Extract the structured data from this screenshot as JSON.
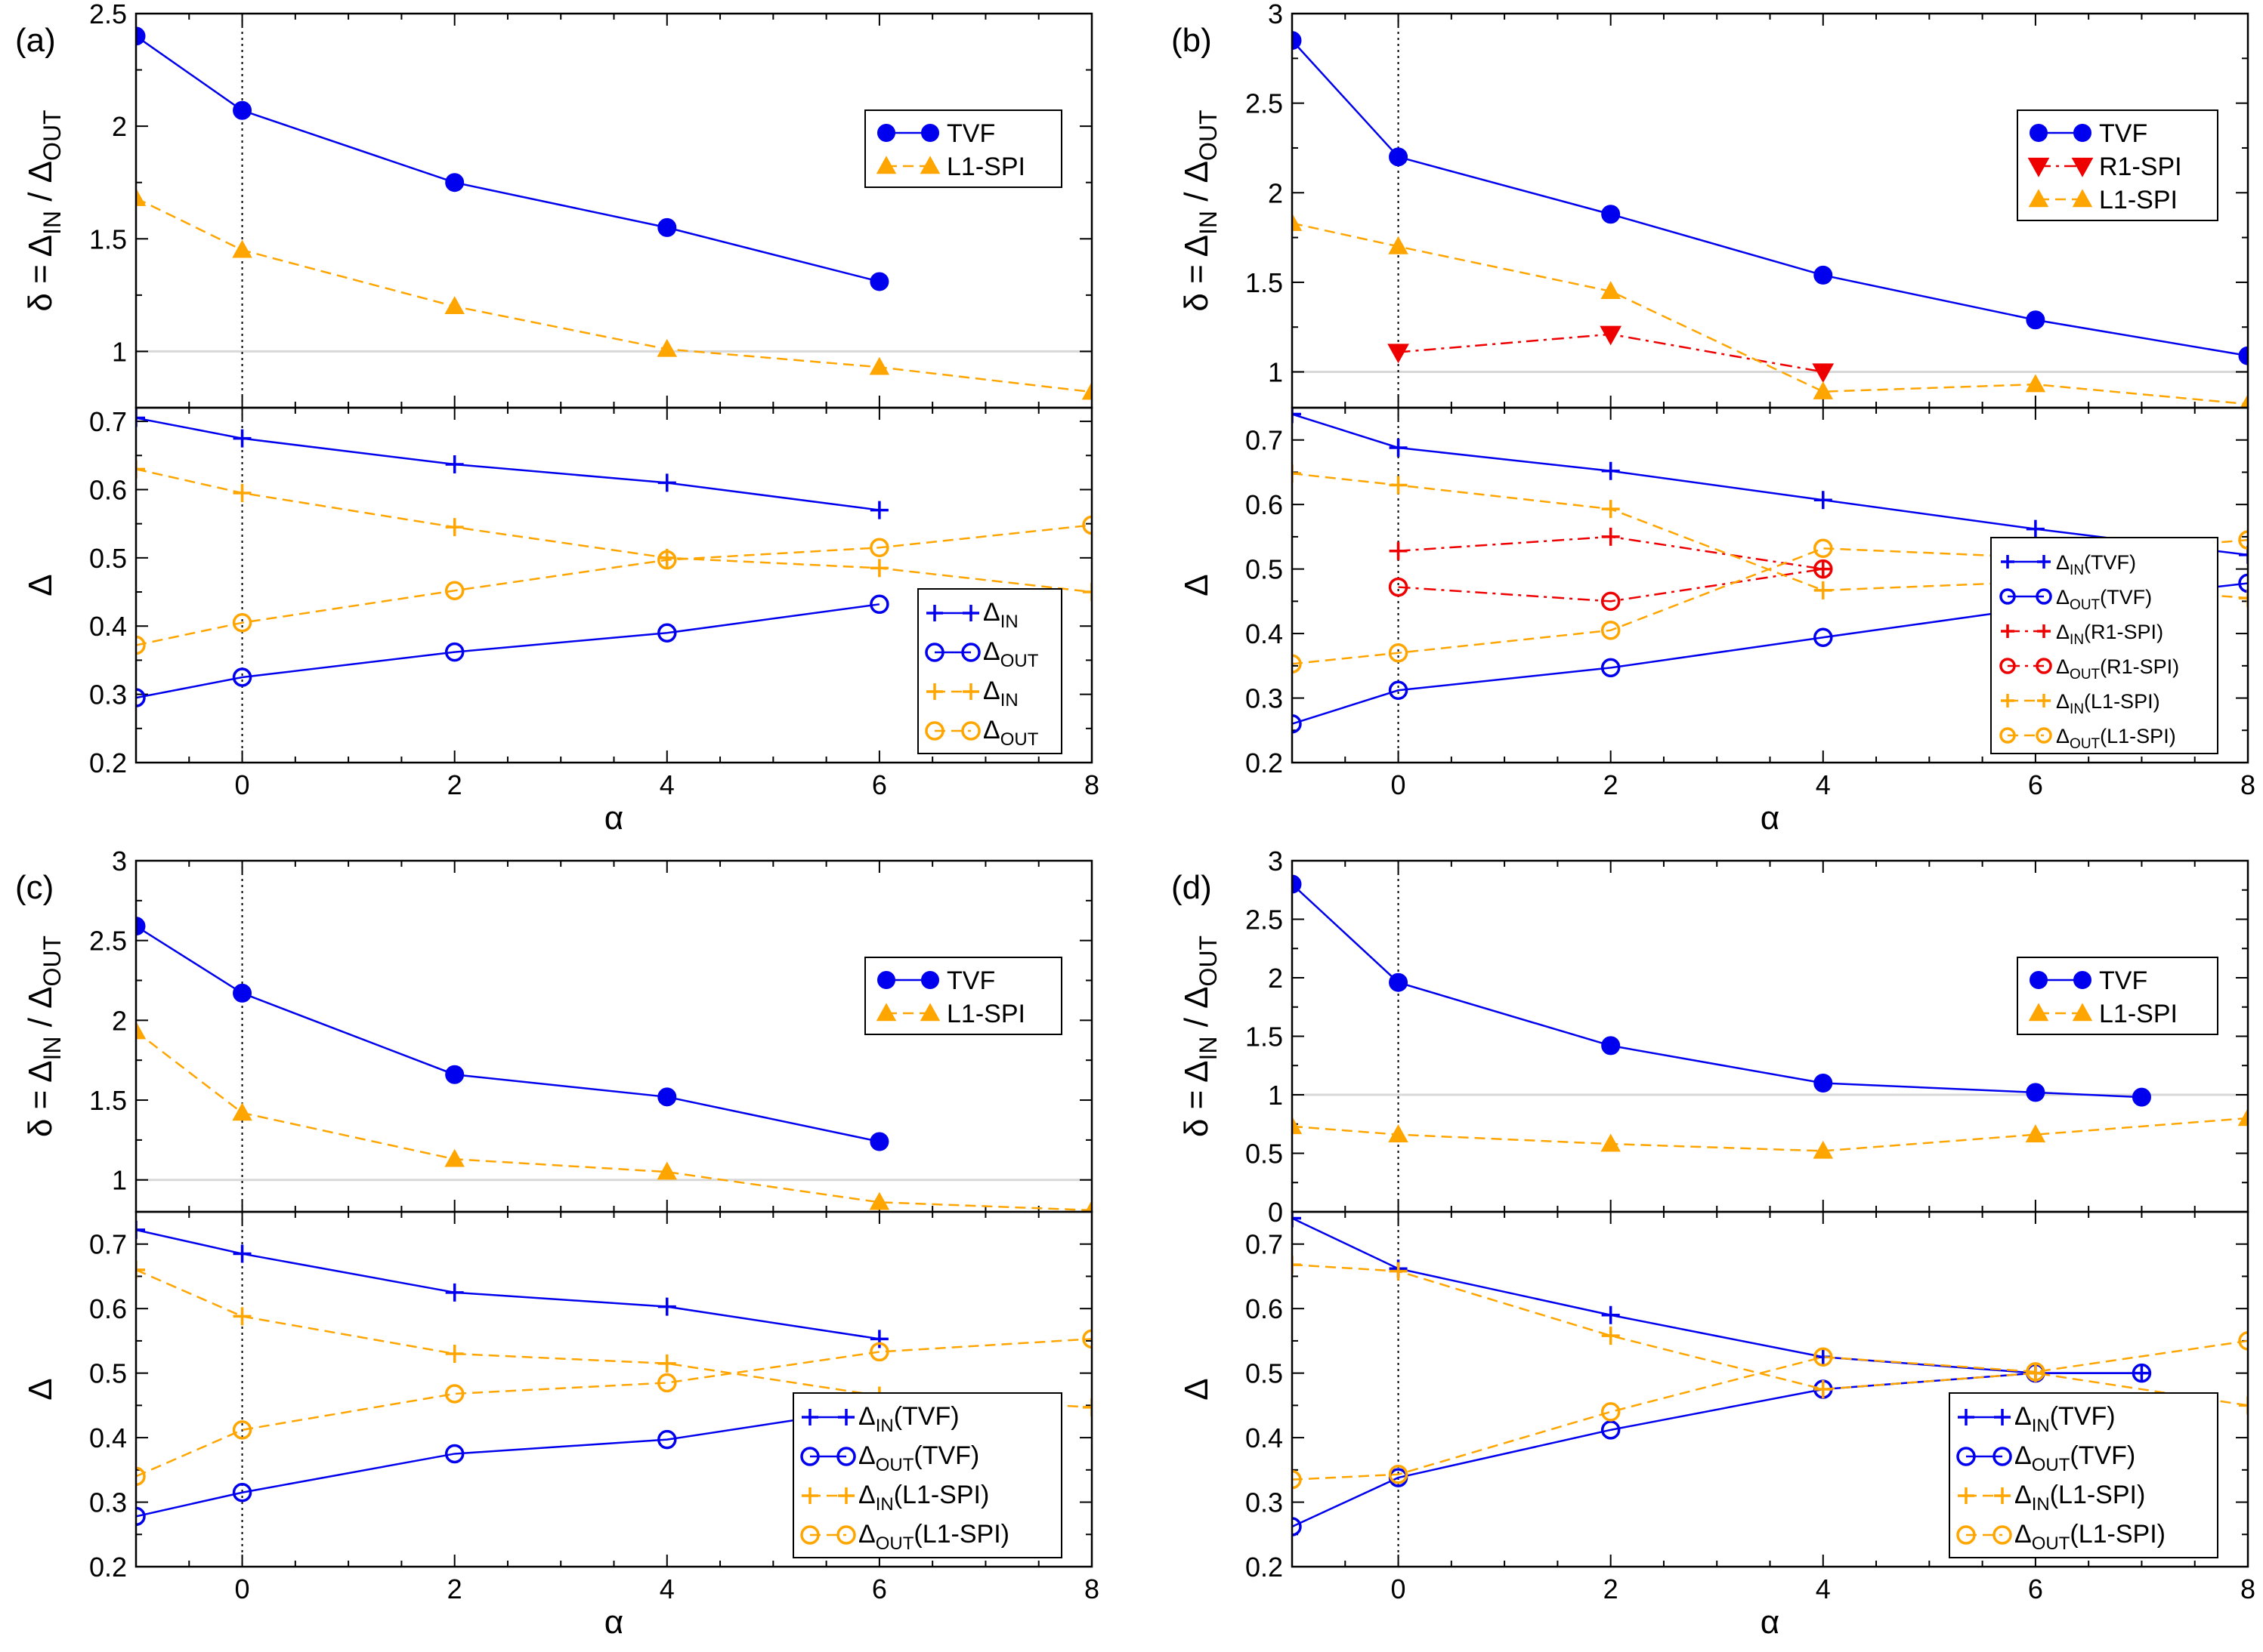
{
  "colors": {
    "tvf": "#0000ee",
    "l1": "#ffa500",
    "r1": "#ee0000",
    "ref": "#d8d8d8",
    "zero": "#000000"
  },
  "labels": {
    "xlabel": "α",
    "ylabel_top": "δ = Δ_IN / Δ_OUT",
    "ylabel_bottom": "Δ"
  },
  "chart_data": [
    {
      "panel": "(a)",
      "type": "line",
      "xlim": [
        -1,
        8
      ],
      "xticks": [
        0,
        2,
        4,
        6,
        8
      ],
      "top": {
        "ylim": [
          0.75,
          2.5
        ],
        "yticks": [
          1,
          1.5,
          2,
          2.5
        ],
        "reference_line": 1,
        "legend_position": "top-right",
        "series": [
          {
            "name": "TVF",
            "marker": "circle-filled",
            "color": "tvf",
            "line": "solid",
            "x": [
              -1,
              0,
              2,
              4,
              6
            ],
            "y": [
              2.4,
              2.07,
              1.75,
              1.55,
              1.31
            ]
          },
          {
            "name": "L1-SPI",
            "marker": "triangle-up",
            "color": "l1",
            "line": "dashed",
            "x": [
              -1,
              0,
              2,
              4,
              6,
              8
            ],
            "y": [
              1.68,
              1.45,
              1.2,
              1.01,
              0.93,
              0.82
            ]
          }
        ]
      },
      "bottom": {
        "ylim": [
          0.2,
          0.72
        ],
        "yticks": [
          0.2,
          0.3,
          0.4,
          0.5,
          0.6,
          0.7
        ],
        "legend_position": "bottom-right",
        "series": [
          {
            "name": "Δ",
            "sub": "IN",
            "suffix": "",
            "marker": "plus",
            "color": "tvf",
            "line": "solid",
            "x": [
              -1,
              0,
              2,
              4,
              6
            ],
            "y": [
              0.705,
              0.675,
              0.637,
              0.61,
              0.57
            ]
          },
          {
            "name": "Δ",
            "sub": "OUT",
            "suffix": "",
            "marker": "circle-open",
            "color": "tvf",
            "line": "solid",
            "x": [
              -1,
              0,
              2,
              4,
              6
            ],
            "y": [
              0.295,
              0.325,
              0.362,
              0.39,
              0.432
            ]
          },
          {
            "name": "Δ",
            "sub": "IN",
            "suffix": "",
            "marker": "plus",
            "color": "l1",
            "line": "dashed",
            "x": [
              -1,
              0,
              2,
              4,
              6,
              8
            ],
            "y": [
              0.63,
              0.595,
              0.545,
              0.5,
              0.485,
              0.45
            ]
          },
          {
            "name": "Δ",
            "sub": "OUT",
            "suffix": "",
            "marker": "circle-open",
            "color": "l1",
            "line": "dashed",
            "x": [
              -1,
              0,
              2,
              4,
              6,
              8
            ],
            "y": [
              0.372,
              0.405,
              0.452,
              0.497,
              0.515,
              0.548
            ]
          }
        ]
      }
    },
    {
      "panel": "(b)",
      "type": "line",
      "xlim": [
        -1,
        8
      ],
      "xticks": [
        0,
        2,
        4,
        6,
        8
      ],
      "top": {
        "ylim": [
          0.8,
          3.0
        ],
        "yticks": [
          1,
          1.5,
          2,
          2.5,
          3
        ],
        "reference_line": 1,
        "legend_position": "top-right",
        "series": [
          {
            "name": "TVF",
            "marker": "circle-filled",
            "color": "tvf",
            "line": "solid",
            "x": [
              -1,
              0,
              2,
              4,
              6,
              8
            ],
            "y": [
              2.85,
              2.2,
              1.88,
              1.54,
              1.29,
              1.09
            ]
          },
          {
            "name": "R1-SPI",
            "marker": "triangle-down",
            "color": "r1",
            "line": "dashdot",
            "x": [
              0,
              2,
              4
            ],
            "y": [
              1.11,
              1.21,
              1.0
            ]
          },
          {
            "name": "L1-SPI",
            "marker": "triangle-up",
            "color": "l1",
            "line": "dashed",
            "x": [
              -1,
              0,
              2,
              4,
              6,
              8
            ],
            "y": [
              1.83,
              1.7,
              1.45,
              0.89,
              0.93,
              0.82
            ]
          }
        ]
      },
      "bottom": {
        "ylim": [
          0.2,
          0.75
        ],
        "yticks": [
          0.2,
          0.3,
          0.4,
          0.5,
          0.6,
          0.7
        ],
        "legend_position": "bottom-right",
        "series": [
          {
            "name": "Δ",
            "sub": "IN",
            "suffix": "(TVF)",
            "marker": "plus",
            "color": "tvf",
            "line": "solid",
            "x": [
              -1,
              0,
              2,
              4,
              6,
              8
            ],
            "y": [
              0.74,
              0.688,
              0.652,
              0.607,
              0.562,
              0.522
            ]
          },
          {
            "name": "Δ",
            "sub": "OUT",
            "suffix": "(TVF)",
            "marker": "circle-open",
            "color": "tvf",
            "line": "solid",
            "x": [
              -1,
              0,
              2,
              4,
              6,
              8
            ],
            "y": [
              0.26,
              0.312,
              0.347,
              0.394,
              0.44,
              0.478
            ]
          },
          {
            "name": "Δ",
            "sub": "IN",
            "suffix": "(R1-SPI)",
            "marker": "plus",
            "color": "r1",
            "line": "dashdot",
            "x": [
              0,
              2,
              4
            ],
            "y": [
              0.528,
              0.55,
              0.5
            ]
          },
          {
            "name": "Δ",
            "sub": "OUT",
            "suffix": "(R1-SPI)",
            "marker": "circle-open",
            "color": "r1",
            "line": "dashdot",
            "x": [
              0,
              2,
              4
            ],
            "y": [
              0.472,
              0.45,
              0.5
            ]
          },
          {
            "name": "Δ",
            "sub": "IN",
            "suffix": "(L1-SPI)",
            "marker": "plus",
            "color": "l1",
            "line": "dashed",
            "x": [
              -1,
              0,
              2,
              4,
              6,
              8
            ],
            "y": [
              0.648,
              0.63,
              0.593,
              0.467,
              0.48,
              0.455
            ]
          },
          {
            "name": "Δ",
            "sub": "OUT",
            "suffix": "(L1-SPI)",
            "marker": "circle-open",
            "color": "l1",
            "line": "dashed",
            "x": [
              -1,
              0,
              2,
              4,
              6,
              8
            ],
            "y": [
              0.353,
              0.37,
              0.405,
              0.532,
              0.518,
              0.545
            ]
          }
        ]
      }
    },
    {
      "panel": "(c)",
      "type": "line",
      "xlim": [
        -1,
        8
      ],
      "xticks": [
        0,
        2,
        4,
        6,
        8
      ],
      "top": {
        "ylim": [
          0.8,
          3.0
        ],
        "yticks": [
          1,
          1.5,
          2,
          2.5,
          3
        ],
        "reference_line": 1,
        "legend_position": "top-right",
        "series": [
          {
            "name": "TVF",
            "marker": "circle-filled",
            "color": "tvf",
            "line": "solid",
            "x": [
              -1,
              0,
              2,
              4,
              6
            ],
            "y": [
              2.59,
              2.17,
              1.66,
              1.52,
              1.24
            ]
          },
          {
            "name": "L1-SPI",
            "marker": "triangle-up",
            "color": "l1",
            "line": "dashed",
            "x": [
              -1,
              0,
              2,
              4,
              6,
              8
            ],
            "y": [
              1.93,
              1.42,
              1.13,
              1.05,
              0.86,
              0.81
            ]
          }
        ]
      },
      "bottom": {
        "ylim": [
          0.2,
          0.75
        ],
        "yticks": [
          0.2,
          0.3,
          0.4,
          0.5,
          0.6,
          0.7
        ],
        "legend_position": "bottom-right",
        "series": [
          {
            "name": "Δ",
            "sub": "IN",
            "suffix": "(TVF)",
            "marker": "plus",
            "color": "tvf",
            "line": "solid",
            "x": [
              -1,
              0,
              2,
              4,
              6
            ],
            "y": [
              0.722,
              0.685,
              0.625,
              0.603,
              0.553
            ]
          },
          {
            "name": "Δ",
            "sub": "OUT",
            "suffix": "(TVF)",
            "marker": "circle-open",
            "color": "tvf",
            "line": "solid",
            "x": [
              -1,
              0,
              2,
              4,
              6
            ],
            "y": [
              0.278,
              0.315,
              0.375,
              0.397,
              0.447
            ]
          },
          {
            "name": "Δ",
            "sub": "IN",
            "suffix": "(L1-SPI)",
            "marker": "plus",
            "color": "l1",
            "line": "dashed",
            "x": [
              -1,
              0,
              2,
              4,
              6,
              8
            ],
            "y": [
              0.66,
              0.588,
              0.53,
              0.515,
              0.465,
              0.447
            ]
          },
          {
            "name": "Δ",
            "sub": "OUT",
            "suffix": "(L1-SPI)",
            "marker": "circle-open",
            "color": "l1",
            "line": "dashed",
            "x": [
              -1,
              0,
              2,
              4,
              6,
              8
            ],
            "y": [
              0.34,
              0.412,
              0.468,
              0.485,
              0.533,
              0.553
            ]
          }
        ]
      }
    },
    {
      "panel": "(d)",
      "type": "line",
      "xlim": [
        -1,
        8
      ],
      "xticks": [
        0,
        2,
        4,
        6,
        8
      ],
      "top": {
        "ylim": [
          0,
          3.0
        ],
        "yticks": [
          0,
          0.5,
          1,
          1.5,
          2,
          2.5,
          3
        ],
        "reference_line": 1,
        "legend_position": "top-right",
        "series": [
          {
            "name": "TVF",
            "marker": "circle-filled",
            "color": "tvf",
            "line": "solid",
            "x": [
              -1,
              0,
              2,
              4,
              6,
              7
            ],
            "y": [
              2.8,
              1.96,
              1.42,
              1.1,
              1.02,
              0.98
            ]
          },
          {
            "name": "L1-SPI",
            "marker": "triangle-up",
            "color": "l1",
            "line": "dashed",
            "x": [
              -1,
              0,
              2,
              4,
              6,
              8
            ],
            "y": [
              0.73,
              0.66,
              0.58,
              0.52,
              0.66,
              0.8
            ]
          }
        ]
      },
      "bottom": {
        "ylim": [
          0.2,
          0.75
        ],
        "yticks": [
          0.2,
          0.3,
          0.4,
          0.5,
          0.6,
          0.7
        ],
        "legend_position": "bottom-right",
        "series": [
          {
            "name": "Δ",
            "sub": "IN",
            "suffix": "(TVF)",
            "marker": "plus",
            "color": "tvf",
            "line": "solid",
            "x": [
              -1,
              0,
              2,
              4,
              6,
              7
            ],
            "y": [
              0.74,
              0.662,
              0.59,
              0.525,
              0.5,
              0.5
            ]
          },
          {
            "name": "Δ",
            "sub": "OUT",
            "suffix": "(TVF)",
            "marker": "circle-open",
            "color": "tvf",
            "line": "solid",
            "x": [
              -1,
              0,
              2,
              4,
              6,
              7
            ],
            "y": [
              0.262,
              0.338,
              0.412,
              0.475,
              0.5,
              0.5
            ]
          },
          {
            "name": "Δ",
            "sub": "IN",
            "suffix": "(L1-SPI)",
            "marker": "plus",
            "color": "l1",
            "line": "dashed",
            "x": [
              -1,
              0,
              2,
              4,
              6,
              8
            ],
            "y": [
              0.668,
              0.658,
              0.558,
              0.475,
              0.5,
              0.45
            ]
          },
          {
            "name": "Δ",
            "sub": "OUT",
            "suffix": "(L1-SPI)",
            "marker": "circle-open",
            "color": "l1",
            "line": "dashed",
            "x": [
              -1,
              0,
              2,
              4,
              6,
              8
            ],
            "y": [
              0.335,
              0.343,
              0.44,
              0.525,
              0.502,
              0.55
            ]
          }
        ]
      }
    }
  ]
}
